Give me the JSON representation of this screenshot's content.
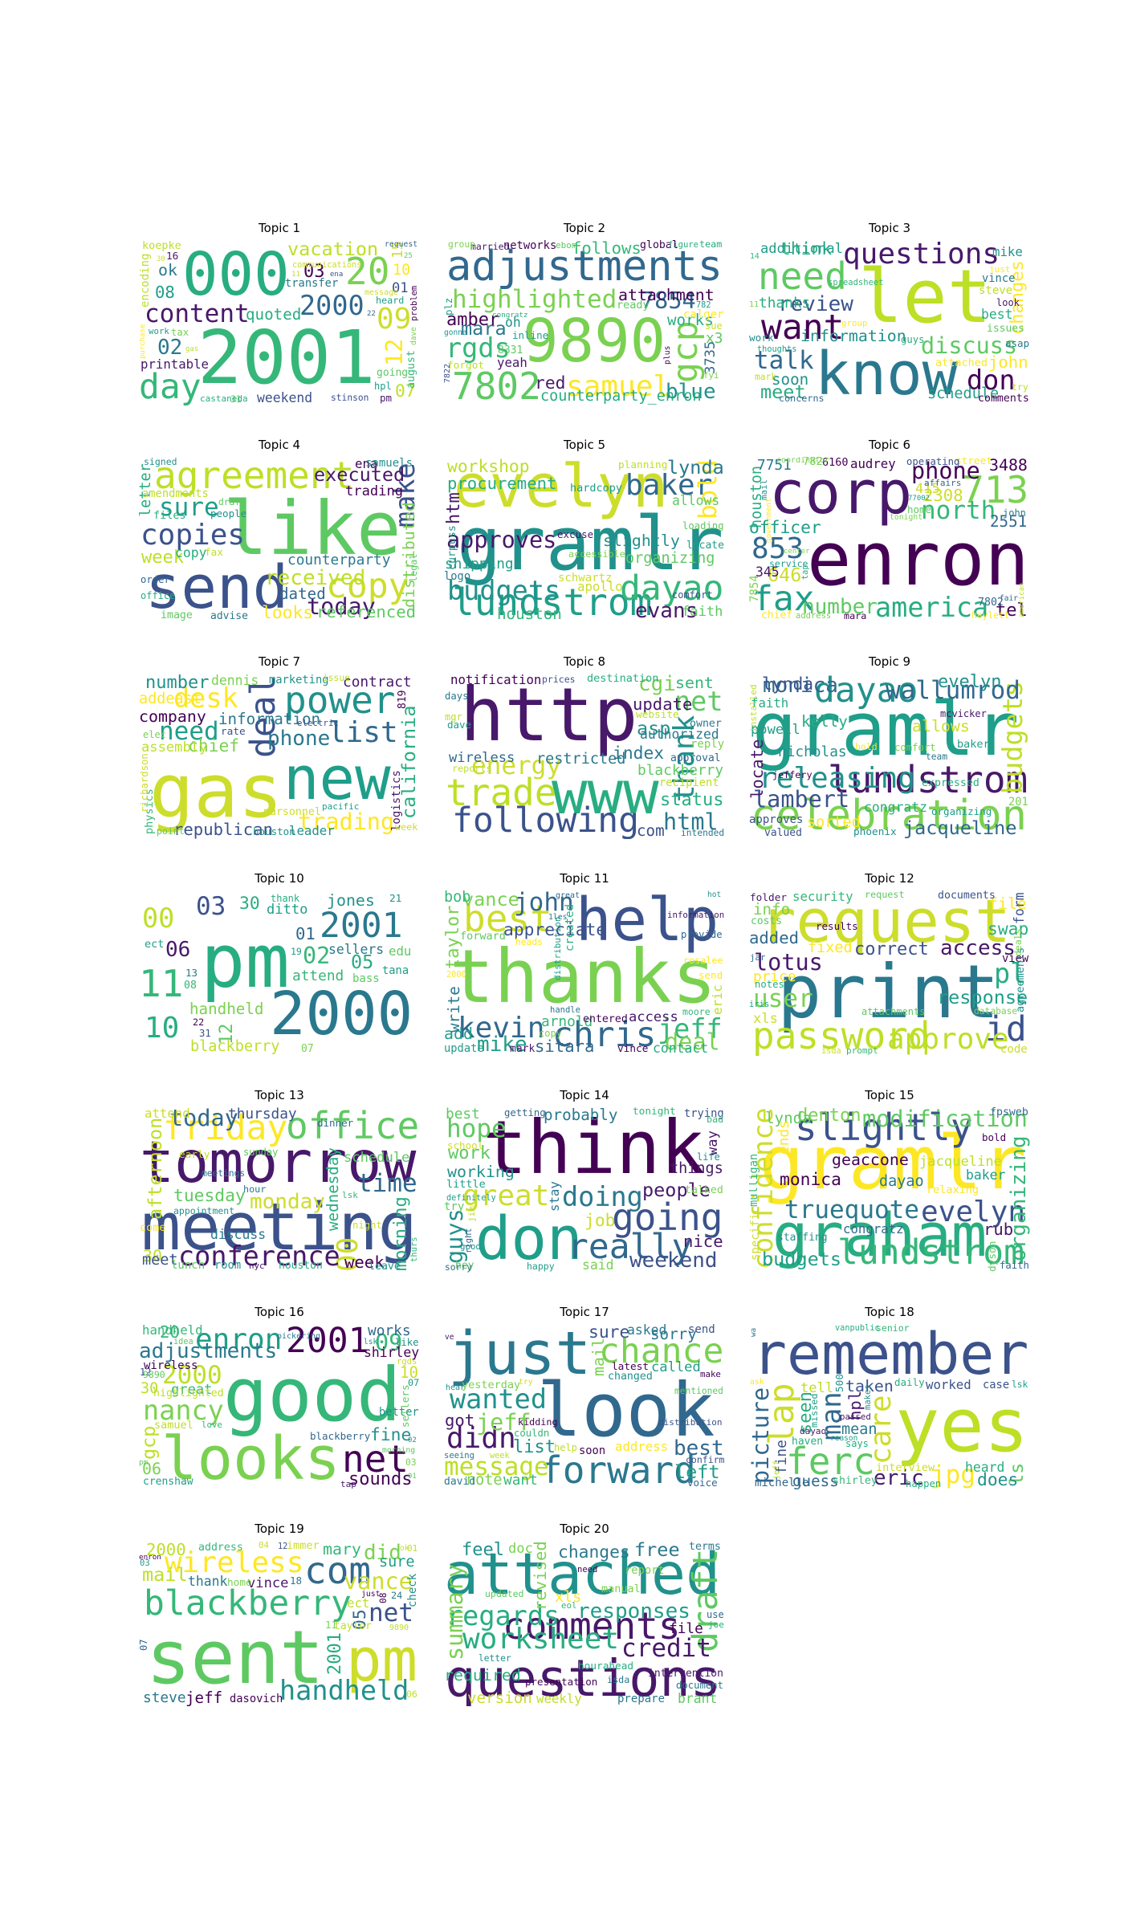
{
  "palette": [
    "#440154",
    "#3b528b",
    "#21918c",
    "#2a788e",
    "#5ec962",
    "#7ad151",
    "#bddf26",
    "#27ad81",
    "#31688e",
    "#1f9e89",
    "#35b779",
    "#48186a",
    "#fde725",
    "#cddd2b"
  ],
  "topics": [
    {
      "title": "Topic 1",
      "words": [
        "2001",
        "000",
        "20",
        "day",
        "09",
        "2000",
        "content",
        "12",
        "02",
        "vacation",
        "03",
        "07",
        "08",
        "ok",
        "quoted",
        "10",
        "15",
        "01",
        "weekend",
        "printable",
        "encoding",
        "transfer",
        "koepke",
        "august",
        "going",
        "16",
        "pm",
        "tax",
        "hpl",
        "heard",
        "31",
        "stinson",
        "castaneda",
        "work",
        "problem",
        "communications",
        "message",
        "request",
        "dave",
        "11",
        "purchase",
        "ena",
        "25",
        "22",
        "gas",
        "30"
      ]
    },
    {
      "title": "Topic 2",
      "words": [
        "adjustments",
        "9890",
        "7802",
        "gcp",
        "samuel",
        "rgds",
        "highlighted",
        "7854",
        "blue",
        "mara",
        "amber",
        "red",
        "follows",
        "attachment",
        "works",
        "counterparty_enron",
        "x3",
        "3735",
        "oh",
        "yeah",
        "calger",
        "networks",
        "ready",
        "global",
        "8331",
        "forgot",
        "inline",
        "plz",
        "sue",
        "team",
        "married",
        "group",
        "ebom",
        "fyi",
        "figure",
        "782",
        "7822",
        "plus",
        "gonna",
        "congratz"
      ]
    },
    {
      "title": "Topic 3",
      "words": [
        "let",
        "know",
        "need",
        "want",
        "questions",
        "don",
        "talk",
        "discuss",
        "review",
        "meet",
        "changes",
        "think",
        "john",
        "information",
        "soon",
        "schedule",
        "thanks",
        "additional",
        "best",
        "mike",
        "steve",
        "vince",
        "attached",
        "comments",
        "issues",
        "work",
        "asap",
        "guys",
        "look",
        "concerns",
        "try",
        "mark",
        "just",
        "group",
        "spreadsheet",
        "thoughts",
        "11",
        "14"
      ]
    },
    {
      "title": "Topic 4",
      "words": [
        "like",
        "send",
        "agreement",
        "copy",
        "copies",
        "make",
        "sure",
        "today",
        "received",
        "executed",
        "week",
        "looks",
        "referenced",
        "distributed",
        "dated",
        "letter",
        "counterparty",
        "trading",
        "copy",
        "ena",
        "samuels",
        "amendments",
        "files",
        "image",
        "advise",
        "fax",
        "people",
        "order",
        "office",
        "legal",
        "signed",
        "draft"
      ]
    },
    {
      "title": "Topic 5",
      "words": [
        "gramlr",
        "evelyn",
        "lundstrom",
        "dayao",
        "baker",
        "budgets",
        "bold",
        "approves",
        "evans",
        "lynda",
        "htm",
        "workshop",
        "procurement",
        "slightly",
        "houston",
        "organizing",
        "shipping",
        "faith",
        "allows",
        "apollo",
        "schwartz",
        "logo",
        "hardcopy",
        "curpuss",
        "locate",
        "planning",
        "excuse",
        "loading",
        "comfort",
        "accessible"
      ]
    },
    {
      "title": "Topic 6",
      "words": [
        "enron",
        "corp",
        "713",
        "fax",
        "853",
        "america",
        "north",
        "phone",
        "number",
        "646",
        "tel",
        "officer",
        "2308",
        "3488",
        "2551",
        "houston",
        "7751",
        "415",
        "345",
        "audrey",
        "7854",
        "782",
        "6160",
        "7802",
        "chief",
        "street",
        "home",
        "operating",
        "john",
        "mara",
        "service",
        "haylett",
        "affairs",
        "mail",
        "address",
        "tap",
        "coordinator",
        "tonight",
        "fair",
        "government",
        "77002",
        "american",
        "center"
      ]
    },
    {
      "title": "Topic 7",
      "words": [
        "gas",
        "new",
        "power",
        "deal",
        "list",
        "desk",
        "need",
        "trading",
        "phone",
        "california",
        "number",
        "chief",
        "republican",
        "company",
        "information",
        "addeast",
        "contract",
        "assembly",
        "dennis",
        "leader",
        "logistics",
        "marketing",
        "physics",
        "parsonnel",
        "819",
        "rate",
        "houston",
        "richardson",
        "elec",
        "week",
        "point",
        "issue",
        "pacific",
        "electric"
      ]
    },
    {
      "title": "Topic 8",
      "words": [
        "http",
        "www",
        "trade",
        "following",
        "thank",
        "net",
        "energy",
        "html",
        "cgi",
        "asp",
        "status",
        "index",
        "update",
        "sent",
        "com",
        "restricted",
        "blackberry",
        "wireless",
        "authorized",
        "notification",
        "reply",
        "recipient",
        "destination",
        "owner",
        "approval",
        "website",
        "dave",
        "days",
        "mgr",
        "reports",
        "prices",
        "intended"
      ]
    },
    {
      "title": "Topic 9",
      "words": [
        "gramlr",
        "celebration",
        "lundstrom",
        "dayao",
        "releasing",
        "budgets",
        "wallumrod",
        "lambert",
        "monica",
        "jacqueline",
        "evelyn",
        "lynda",
        "locate",
        "allows",
        "kelly",
        "sorted",
        "nicholas",
        "powell",
        "congratz",
        "faith",
        "approves",
        "201",
        "baker",
        "expressed",
        "valued",
        "phoenix",
        "organizing",
        "comfort",
        "mcvicker",
        "jeffery",
        "bold",
        "team",
        "installed"
      ]
    },
    {
      "title": "Topic 10",
      "words": [
        "pm",
        "2000",
        "11",
        "2001",
        "10",
        "00",
        "03",
        "02",
        "06",
        "05",
        "12",
        "30",
        "01",
        "jones",
        "handheld",
        "blackberry",
        "attend",
        "ditto",
        "sellers",
        "edu",
        "bass",
        "tana",
        "ect",
        "08",
        "07",
        "21",
        "13",
        "31",
        "thank",
        "22",
        "19"
      ]
    },
    {
      "title": "Topic 11",
      "words": [
        "thanks",
        "help",
        "best",
        "chris",
        "kevin",
        "jeff",
        "john",
        "deal",
        "mike",
        "vance",
        "taylor",
        "appreciate",
        "sitara",
        "add",
        "write",
        "bob",
        "arnold",
        "access",
        "contact",
        "eric",
        "created",
        "update",
        "forward",
        "entered",
        "mark",
        "vince",
        "send",
        "provide",
        "copy",
        "rosalee",
        "moore",
        "heads",
        "distribution",
        "information",
        "handle",
        "2000",
        "great",
        "1les",
        "hot"
      ]
    },
    {
      "title": "Topic 12",
      "words": [
        "print",
        "request",
        "password",
        "id",
        "approve",
        "pl",
        "user",
        "lotus",
        "access",
        "response",
        "correct",
        "swap",
        "added",
        "file",
        "info",
        "fixed",
        "price",
        "xls",
        "form",
        "security",
        "code",
        "view",
        "agreements",
        "documents",
        "costs",
        "folder",
        "results",
        "notes",
        "attachments",
        "request",
        "deals",
        "database",
        "prompt",
        "jar",
        "iris",
        "isda"
      ]
    },
    {
      "title": "Topic 13",
      "words": [
        "meeting",
        "tomorrow",
        "office",
        "friday",
        "00",
        "conference",
        "time",
        "today",
        "monday",
        "afternoon",
        "morning",
        "tuesday",
        "week",
        "30",
        "wednesday",
        "meet",
        "thursday",
        "schedule",
        "discuss",
        "attend",
        "lunch",
        "room",
        "come",
        "leave",
        "houston",
        "early",
        "dinner",
        "night",
        "sunday",
        "hour",
        "appointment",
        "meetings",
        "lsk",
        "nyc",
        "thurs"
      ]
    },
    {
      "title": "Topic 14",
      "words": [
        "think",
        "don",
        "going",
        "really",
        "great",
        "doing",
        "hope",
        "guys",
        "weekend",
        "people",
        "work",
        "job",
        "nice",
        "working",
        "probably",
        "things",
        "best",
        "way",
        "said",
        "stay",
        "try",
        "trying",
        "little",
        "talked",
        "hey",
        "tonight",
        "school",
        "getting",
        "life",
        "bad",
        "happy",
        "sorry",
        "jim",
        "good",
        "right",
        "definitely"
      ]
    },
    {
      "title": "Topic 15",
      "words": [
        "gramlr",
        "graham",
        "slightly",
        "lundstrom",
        "evelyn",
        "confidence",
        "truequote",
        "modification",
        "organizing",
        "budgets",
        "denton",
        "monica",
        "rub",
        "geaccone",
        "lynda",
        "dayao",
        "ends",
        "jacqueline",
        "baker",
        "congratz",
        "specific",
        "mulligan",
        "relaxing",
        "fpsweb",
        "staffing",
        "dyson",
        "bold",
        "faith"
      ]
    },
    {
      "title": "Topic 16",
      "words": [
        "good",
        "looks",
        "net",
        "2001",
        "enron",
        "nancy",
        "2000",
        "09",
        "adjustments",
        "gcp",
        "sounds",
        "fine",
        "20",
        "06",
        "10",
        "30",
        "works",
        "great",
        "shirley",
        "handheld",
        "wireless",
        "better",
        "samuel",
        "highlighted",
        "crenshaw",
        "sellers",
        "blackberry",
        "like",
        "12",
        "07",
        "9890",
        "03",
        "tap",
        "love",
        "rgds",
        "idea",
        "pickering",
        "morning",
        "lsk",
        "pm",
        "01",
        "02"
      ]
    },
    {
      "title": "Topic 17",
      "words": [
        "look",
        "just",
        "forward",
        "chance",
        "didn",
        "wanted",
        "message",
        "jeff",
        "best",
        "left",
        "list",
        "sure",
        "got",
        "mail",
        "sorry",
        "note",
        "want",
        "called",
        "asked",
        "address",
        "send",
        "soon",
        "yesterday",
        "changed",
        "david",
        "latest",
        "voice",
        "couldn",
        "help",
        "kidding",
        "confirm",
        "mentioned",
        "distribution",
        "make",
        "seeing",
        "week",
        "hear",
        "try",
        "ve"
      ]
    },
    {
      "title": "Topic 18",
      "words": [
        "yes",
        "remember",
        "ferc",
        "lap",
        "care",
        "man",
        "jpg",
        "picture",
        "eric",
        "ls",
        "seen",
        "does",
        "hpl",
        "taken",
        "guess",
        "mean",
        "fine",
        "tell",
        "heard",
        "worked",
        "michelle",
        "case",
        "interview",
        "shirley",
        "haven",
        "500",
        "daily",
        "happen",
        "says",
        "missed",
        "senior",
        "lsk",
        "dayao",
        "passed",
        "makes",
        "vanpublic",
        "jeff",
        "ask",
        "reason",
        "wa"
      ]
    },
    {
      "title": "Topic 19",
      "words": [
        "sent",
        "pm",
        "com",
        "blackberry",
        "wireless",
        "handheld",
        "net",
        "vance",
        "did",
        "mail",
        "2001",
        "05",
        "2000",
        "mary",
        "jeff",
        "sure",
        "steve",
        "vince",
        "thank",
        "ect",
        "check",
        "dasovich",
        "immer",
        "address",
        "taylor",
        "home",
        "18",
        "11",
        "07",
        "24",
        "06",
        "08",
        "01",
        "04",
        "03",
        "12",
        "9890",
        "just",
        "ok",
        "enron"
      ]
    },
    {
      "title": "Topic 20",
      "words": [
        "attached",
        "questions",
        "comments",
        "draft",
        "worksheet",
        "regards",
        "credit",
        "summary",
        "responses",
        "free",
        "feel",
        "changes",
        "revised",
        "required",
        "version",
        "xls",
        "file",
        "doc",
        "brant",
        "weekly",
        "prepare",
        "report",
        "manual",
        "terms",
        "intervention",
        "hourahead",
        "presentation",
        "document",
        "use",
        "isda",
        "updated",
        "letter",
        "joe",
        "eol",
        "need"
      ]
    }
  ]
}
